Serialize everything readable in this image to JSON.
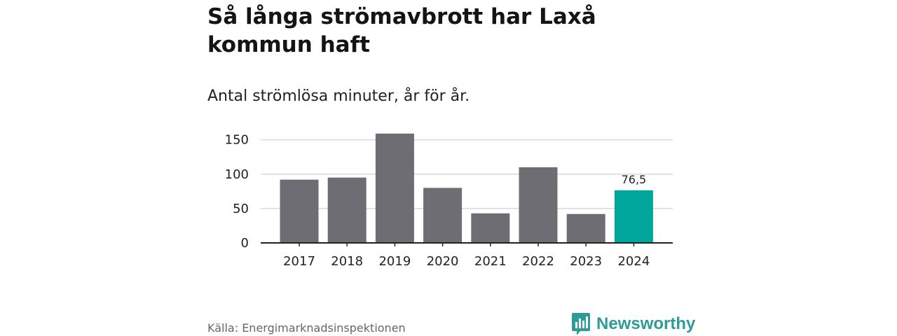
{
  "title": "Så långa strömavbrott har Laxå kommun haft",
  "subtitle": "Antal strömlösa minuter, år för år.",
  "source": "Källa: Energimarknadsinspektionen",
  "brand": {
    "name": "Newsworthy",
    "icon": "newsworthy-logo-icon",
    "color": "#2d9c97"
  },
  "colors": {
    "bar": "#6e6d73",
    "highlight": "#00a69c",
    "grid": "#d9d9d9",
    "axis": "#222222"
  },
  "chart_data": {
    "type": "bar",
    "title": "Så långa strömavbrott har Laxå kommun haft",
    "subtitle": "Antal strömlösa minuter, år för år.",
    "xlabel": "",
    "ylabel": "",
    "categories": [
      "2017",
      "2018",
      "2019",
      "2020",
      "2021",
      "2022",
      "2023",
      "2024"
    ],
    "values": [
      92,
      95,
      159,
      80,
      43,
      110,
      42,
      76.5
    ],
    "highlight_index": 7,
    "data_labels": [
      {
        "index": 7,
        "text": "76,5"
      }
    ],
    "ylim": [
      0,
      170
    ],
    "yticks": [
      0,
      50,
      100,
      150
    ],
    "ytick_labels": [
      "0",
      "50",
      "100",
      "150"
    ],
    "grid": true,
    "legend": "none"
  }
}
